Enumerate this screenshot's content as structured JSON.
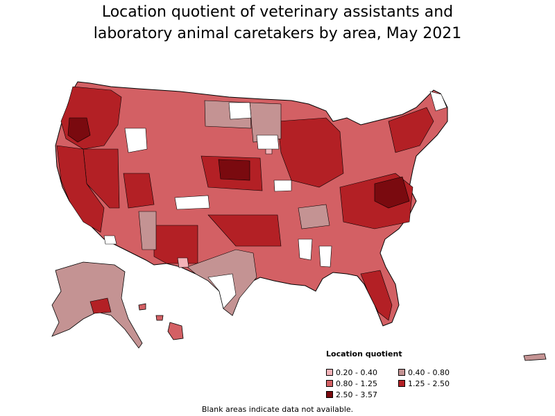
{
  "title_line1": "Location quotient of veterinary assistants and",
  "title_line2": "laboratory animal caretakers by area, May 2021",
  "legend": {
    "title": "Location quotient",
    "items": [
      {
        "label": "0.20 - 0.40",
        "color": "#f4b3b8"
      },
      {
        "label": "0.40 - 0.80",
        "color": "#c49393"
      },
      {
        "label": "0.80 - 1.25",
        "color": "#d36064"
      },
      {
        "label": "1.25 - 2.50",
        "color": "#b32025"
      },
      {
        "label": "2.50 - 3.57",
        "color": "#7a0a0f"
      }
    ]
  },
  "footnote": "Blank areas indicate data not available.",
  "colors": {
    "no_data": "#ffffff",
    "border": "#000000"
  }
}
